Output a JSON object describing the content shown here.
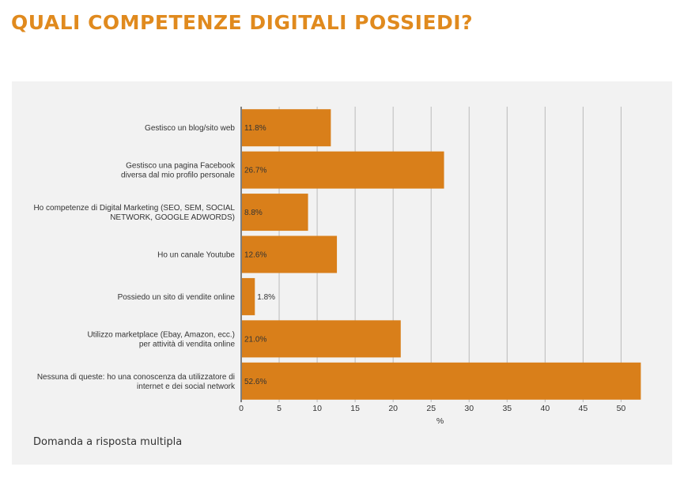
{
  "page": {
    "title": "QUALI COMPETENZE DIGITALI POSSIEDI?",
    "note": "Domanda a risposta multipla"
  },
  "colors": {
    "title": "#e08a1e",
    "bar": "#d97f1a",
    "panel_bg": "#f2f2f2",
    "grid": "#bbbbbb"
  },
  "chart_data": {
    "type": "bar",
    "orientation": "horizontal",
    "title": "",
    "xlabel": "%",
    "ylabel": "",
    "xlim": [
      0,
      53.6
    ],
    "xticks": [
      0,
      5,
      10,
      15,
      20,
      25,
      30,
      35,
      40,
      45,
      50
    ],
    "grid": true,
    "categories": [
      [
        "Gestisco un blog/sito web"
      ],
      [
        "Gestisco una pagina Facebook",
        "diversa dal mio profilo personale"
      ],
      [
        "Ho competenze di Digital Marketing (SEO, SEM, SOCIAL",
        "NETWORK, GOOGLE ADWORDS)"
      ],
      [
        "Ho un canale Youtube"
      ],
      [
        "Possiedo un sito di vendite online"
      ],
      [
        "Utilizzo marketplace (Ebay, Amazon, ecc.)",
        "per attività di vendita online"
      ],
      [
        "Nessuna di queste: ho una conoscenza da utilizzatore di",
        "internet e dei social network"
      ]
    ],
    "values": [
      11.8,
      26.7,
      8.8,
      12.6,
      1.8,
      21.0,
      52.6
    ],
    "data_labels": [
      "11.8%",
      "26.7%",
      "8.8%",
      "12.6%",
      "1.8%",
      "21.0%",
      "52.6%"
    ]
  }
}
